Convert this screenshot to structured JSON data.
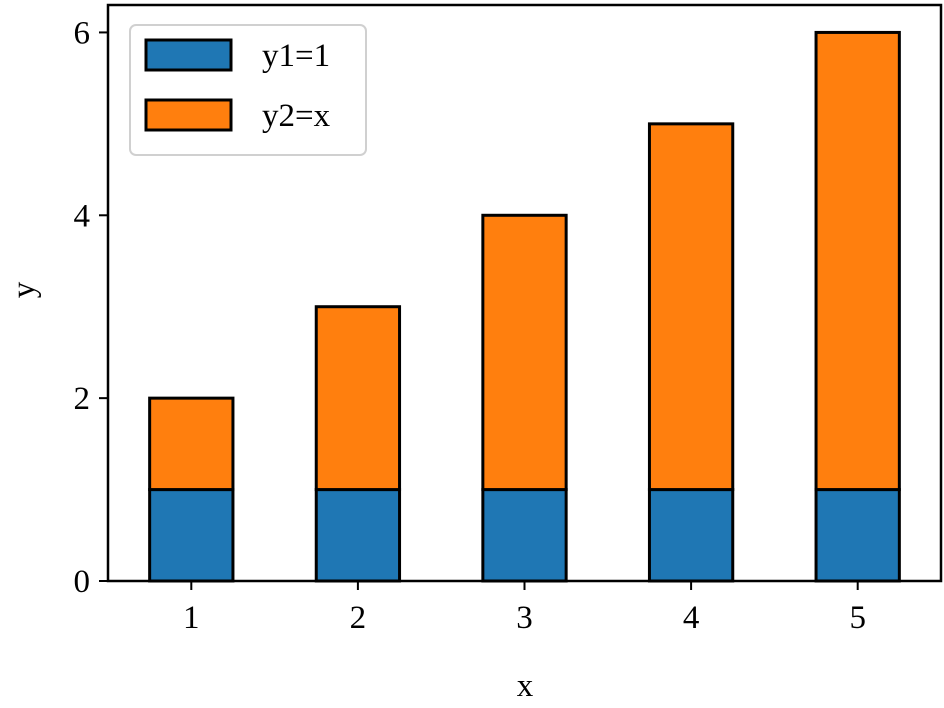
{
  "chart_data": {
    "type": "bar",
    "stacked": true,
    "x": [
      1,
      2,
      3,
      4,
      5
    ],
    "categories": [
      "1",
      "2",
      "3",
      "4",
      "5"
    ],
    "series": [
      {
        "name": "y1=1",
        "values": [
          1,
          1,
          1,
          1,
          1
        ],
        "color": "#1f77b4"
      },
      {
        "name": "y2=x",
        "values": [
          1,
          2,
          3,
          4,
          5
        ],
        "color": "#ff7f0e"
      }
    ],
    "xlabel": "x",
    "ylabel": "y",
    "ylim": [
      0,
      6.3
    ],
    "yticks": [
      0,
      2,
      4,
      6
    ],
    "grid": false,
    "legend": "top-left",
    "edge_color": "#000000"
  }
}
